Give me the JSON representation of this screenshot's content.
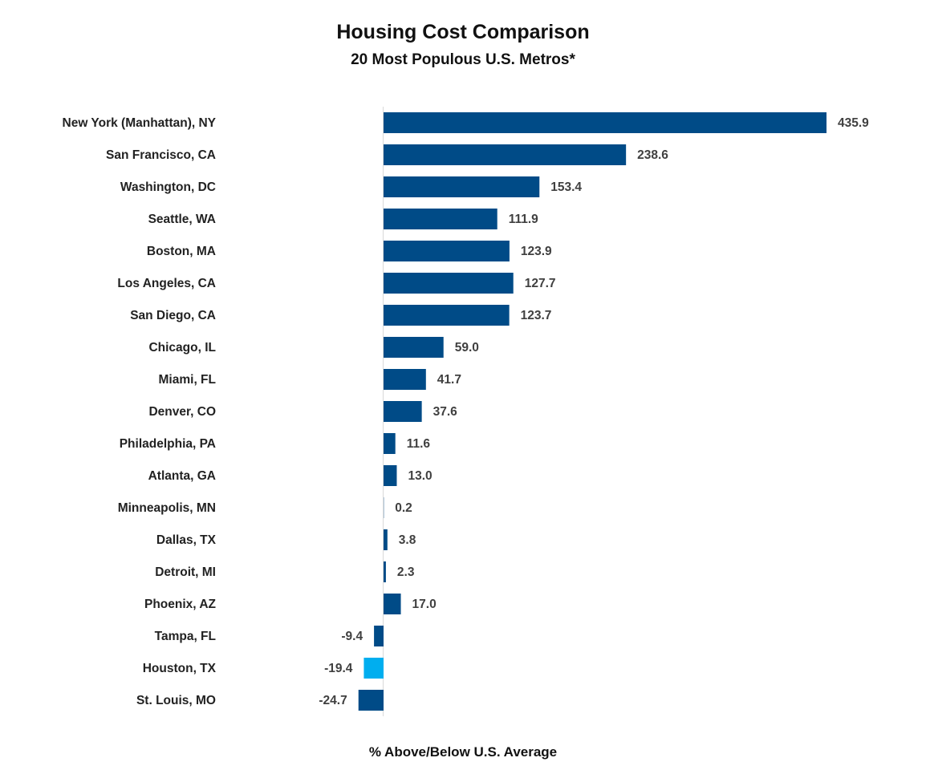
{
  "chart_data": {
    "type": "bar",
    "orientation": "horizontal",
    "title": "Housing Cost Comparison",
    "subtitle": "20 Most Populous U.S. Metros*",
    "xlabel": "% Above/Below U.S. Average",
    "ylabel": "",
    "grid": false,
    "xlim": [
      -30,
      440
    ],
    "colors": {
      "default": "#004b87",
      "highlight": "#00aeef"
    },
    "highlight_category": "Houston, TX",
    "categories": [
      "New York (Manhattan), NY",
      "San Francisco, CA",
      "Washington, DC",
      "Seattle, WA",
      "Boston, MA",
      "Los Angeles, CA",
      "San Diego, CA",
      "Chicago, IL",
      "Miami, FL",
      "Denver, CO",
      "Philadelphia, PA",
      "Atlanta, GA",
      "Minneapolis, MN",
      "Dallas, TX",
      "Detroit, MI",
      "Phoenix, AZ",
      "Tampa, FL",
      "Houston, TX",
      "St. Louis, MO"
    ],
    "values": [
      435.9,
      238.6,
      153.4,
      111.9,
      123.9,
      127.7,
      123.7,
      59.0,
      41.7,
      37.6,
      11.6,
      13.0,
      0.2,
      3.8,
      2.3,
      17.0,
      -9.4,
      -19.4,
      -24.7
    ],
    "value_labels": [
      "435.9",
      "238.6",
      "153.4",
      "111.9",
      "123.9",
      "127.7",
      "123.7",
      "59.0",
      "41.7",
      "37.6",
      "11.6",
      "13.0",
      "0.2",
      "3.8",
      "2.3",
      "17.0",
      "-9.4",
      "-19.4",
      "-24.7"
    ]
  }
}
